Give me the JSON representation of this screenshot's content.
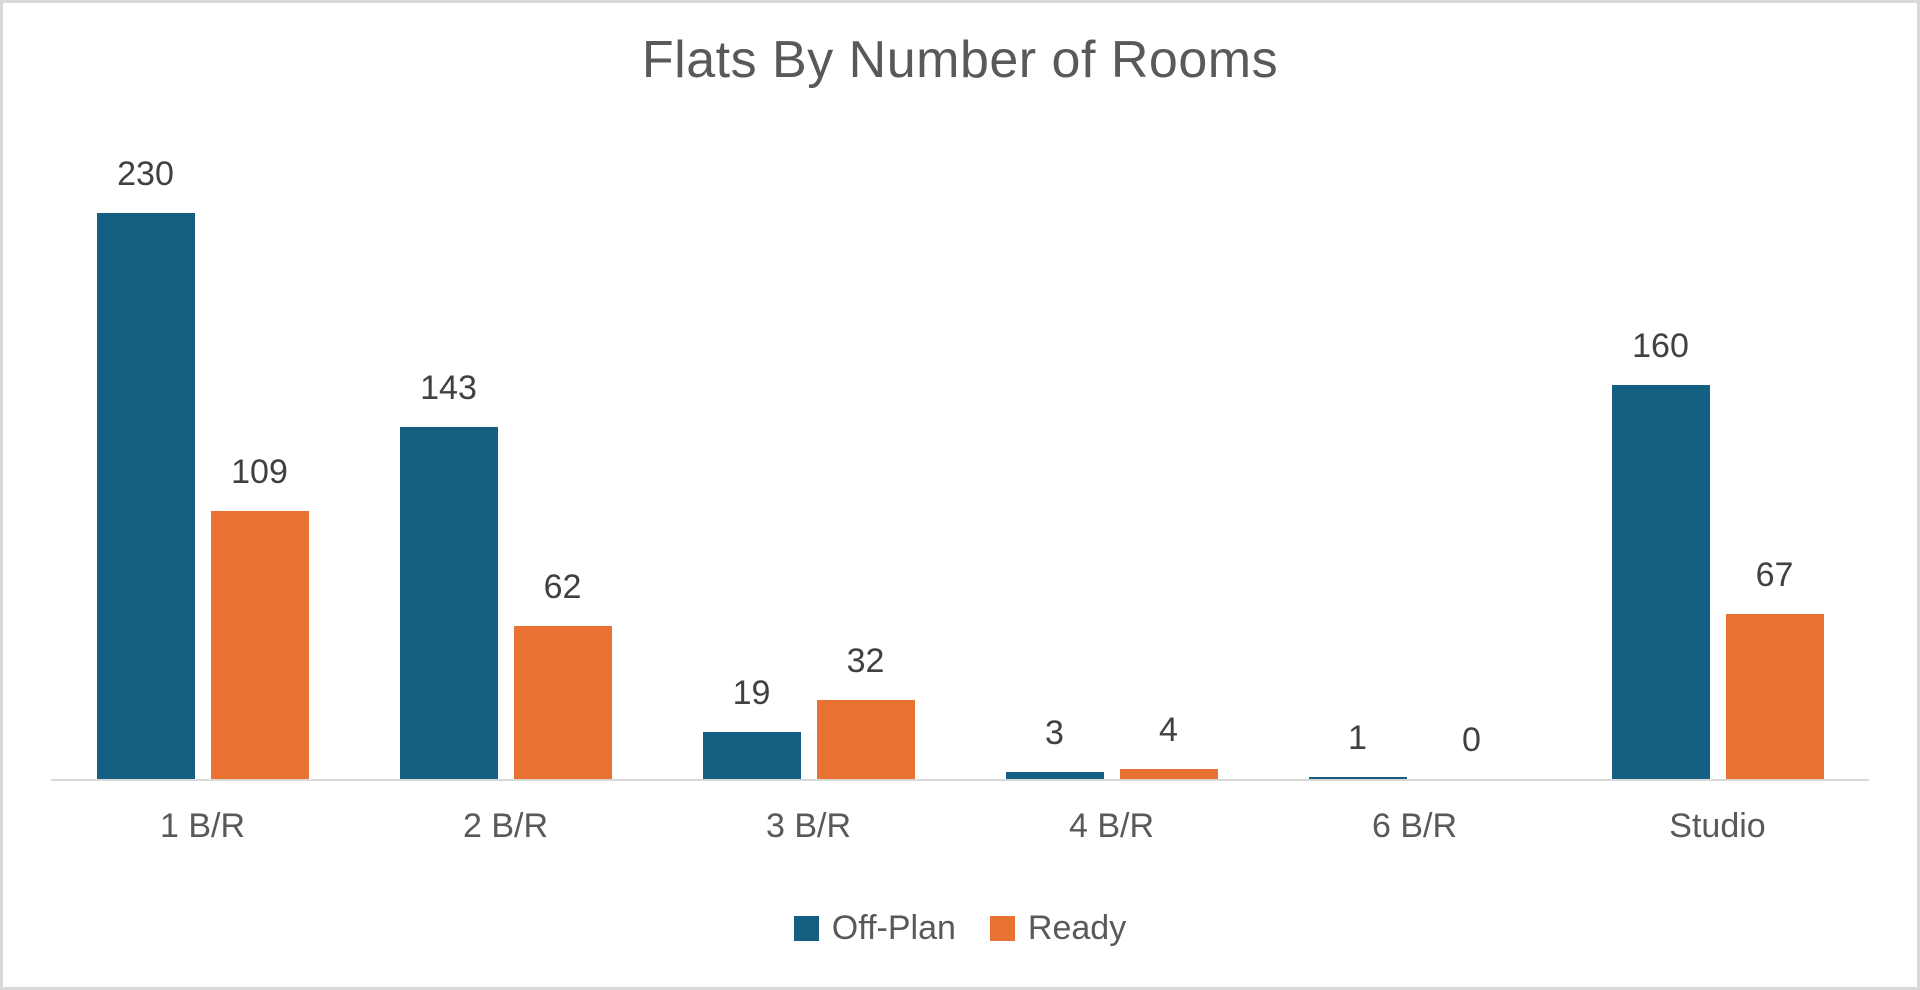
{
  "chart_data": {
    "type": "bar",
    "title": "Flats By Number of Rooms",
    "categories": [
      "1 B/R",
      "2 B/R",
      "3 B/R",
      "4 B/R",
      "6 B/R",
      "Studio"
    ],
    "series": [
      {
        "name": "Off-Plan",
        "color": "#156082",
        "values": [
          230,
          143,
          19,
          3,
          1,
          160
        ]
      },
      {
        "name": "Ready",
        "color": "#E97132",
        "values": [
          109,
          62,
          32,
          4,
          0,
          67
        ]
      }
    ],
    "ylim": [
      0,
      250
    ],
    "data_labels": true,
    "grid": false,
    "y_axis_visible": false,
    "legend_position": "bottom"
  },
  "colors": {
    "title_text": "#595959",
    "data_label_text": "#404040",
    "category_label_text": "#595959",
    "legend_text": "#595959",
    "axis_line": "#D9D9D9",
    "background": "#FFFFFF",
    "frame_border": "#D8D8D8"
  }
}
